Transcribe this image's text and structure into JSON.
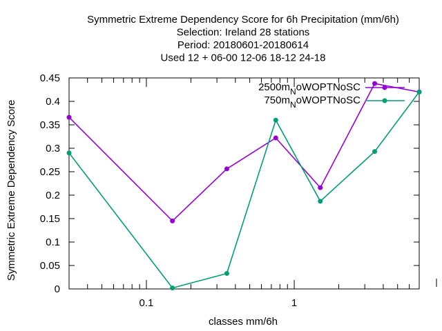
{
  "chart_data": {
    "type": "line",
    "title_lines": [
      "Symmetric Extreme Dependency Score  for 6h Precipitation (mm/6h)",
      "Selection: Ireland     28 stations",
      "Period: 20180601-20180614",
      "Used  12 + 06-00 12-06 18-12 24-18"
    ],
    "xlabel": "classes mm/6h",
    "ylabel": "Symmetric Extreme Dependency Score",
    "x_scale": "log",
    "xlim": [
      0.03,
      7
    ],
    "ylim": [
      0,
      0.45
    ],
    "x_ticks": [
      {
        "value": 0.1,
        "label": "0.1"
      },
      {
        "value": 1,
        "label": "1"
      }
    ],
    "y_ticks": [
      {
        "value": 0,
        "label": "0"
      },
      {
        "value": 0.05,
        "label": "0.05"
      },
      {
        "value": 0.1,
        "label": "0.1"
      },
      {
        "value": 0.15,
        "label": "0.15"
      },
      {
        "value": 0.2,
        "label": "0.2"
      },
      {
        "value": 0.25,
        "label": "0.25"
      },
      {
        "value": 0.3,
        "label": "0.3"
      },
      {
        "value": 0.35,
        "label": "0.35"
      },
      {
        "value": 0.4,
        "label": "0.4"
      },
      {
        "value": 0.45,
        "label": "0.45"
      }
    ],
    "grid": false,
    "legend_position": "top-right",
    "series": [
      {
        "name_main": "2500m",
        "name_sub": "N",
        "name_rest": "oWOPTNoSC",
        "color": "#9400d3",
        "x": [
          0.03,
          0.15,
          0.35,
          0.75,
          1.5,
          3.5,
          7
        ],
        "y": [
          0.366,
          0.145,
          0.256,
          0.322,
          0.216,
          0.438,
          0.42
        ]
      },
      {
        "name_main": "750m",
        "name_sub": "N",
        "name_rest": "oWOPTNoSC",
        "color": "#009e73",
        "x": [
          0.03,
          0.15,
          0.35,
          0.75,
          1.5,
          3.5,
          7
        ],
        "y": [
          0.29,
          0.002,
          0.033,
          0.36,
          0.187,
          0.293,
          0.42
        ]
      }
    ]
  }
}
